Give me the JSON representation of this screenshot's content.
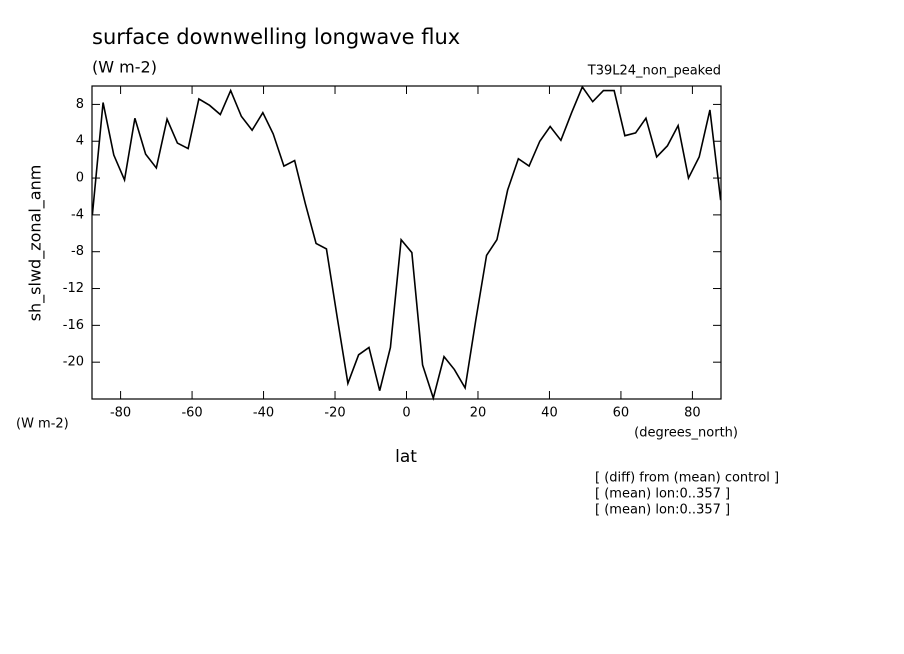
{
  "chart_data": {
    "type": "line",
    "title": "surface downwelling longwave flux",
    "units": "(W m-2)",
    "run_label": "T39L24_non_peaked",
    "y_label": "sh_slwd_zonal_anm",
    "y_units": "(W m-2)",
    "x_units": "(degrees_north)",
    "x_label": "lat",
    "notes": [
      "[ (diff) from (mean) control ]",
      "[ (mean) lon:0..357 ]",
      "[ (mean) lon:0..357 ]"
    ],
    "x": [
      -87.9,
      -84.9,
      -81.9,
      -78.9,
      -76.0,
      -73.0,
      -70.0,
      -67.0,
      -64.1,
      -61.1,
      -58.1,
      -55.1,
      -52.1,
      -49.2,
      -46.2,
      -43.2,
      -40.2,
      -37.3,
      -34.3,
      -31.3,
      -28.3,
      -25.3,
      -22.4,
      -19.4,
      -16.4,
      -13.4,
      -10.5,
      -7.5,
      -4.5,
      -1.5,
      1.5,
      4.5,
      7.5,
      10.5,
      13.4,
      16.4,
      19.4,
      22.4,
      25.3,
      28.3,
      31.3,
      34.3,
      37.3,
      40.2,
      43.2,
      46.2,
      49.2,
      52.1,
      55.1,
      58.1,
      61.1,
      64.1,
      67.0,
      70.0,
      73.0,
      76.0,
      78.9,
      81.9,
      84.9,
      87.9
    ],
    "series": [
      {
        "color": "#000000",
        "values": [
          -4,
          8.2,
          2.5,
          -0.2,
          6.5,
          2.6,
          1.1,
          6.4,
          3.8,
          3.2,
          8.6,
          7.9,
          6.9,
          9.5,
          6.7,
          5.2,
          7.1,
          4.8,
          1.3,
          1.9,
          -2.8,
          -7.1,
          -7.7,
          -15.1,
          -22.3,
          -19.2,
          -18.4,
          -23.1,
          -18.4,
          -6.7,
          -8.1,
          -20.3,
          -23.9,
          -19.4,
          -20.8,
          -22.8,
          -15.4,
          -8.4,
          -6.7,
          -1.3,
          2.1,
          1.3,
          4.0,
          5.6,
          4.1,
          7.1,
          9.9,
          8.3,
          9.5,
          9.5,
          4.6,
          4.9,
          6.5,
          2.3,
          3.5,
          5.7,
          0.0,
          2.3,
          7.4,
          -2.4
        ]
      }
    ],
    "xlim": [
      -88,
      88
    ],
    "xticks": [
      -80,
      -60,
      -40,
      -20,
      0,
      20,
      40,
      60,
      80
    ],
    "ylim": [
      -24,
      10
    ],
    "yticks": [
      -20,
      -16,
      -12,
      -8,
      -4,
      0,
      4,
      8
    ]
  }
}
